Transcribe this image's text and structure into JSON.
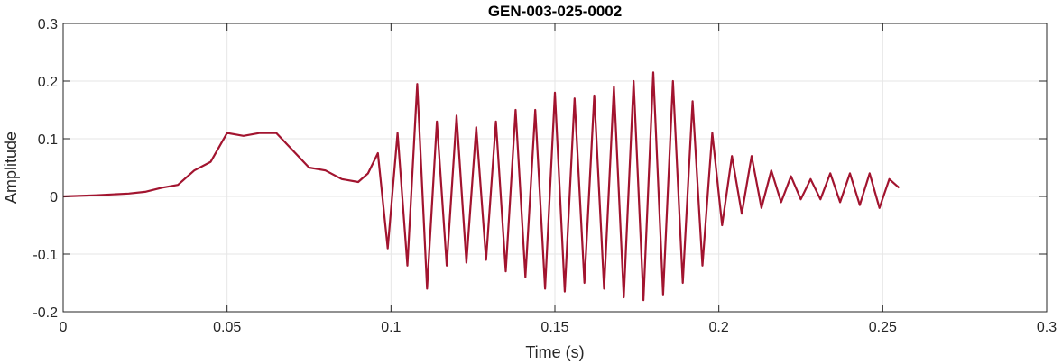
{
  "chart_data": {
    "type": "line",
    "title": "GEN-003-025-0002",
    "xlabel": "Time (s)",
    "ylabel": "Amplitude",
    "xlim": [
      0,
      0.3
    ],
    "ylim": [
      -0.2,
      0.3
    ],
    "x_ticks": [
      0,
      0.05,
      0.1,
      0.15,
      0.2,
      0.25,
      0.3
    ],
    "x_tick_labels": [
      "0",
      "0.05",
      "0.1",
      "0.15",
      "0.2",
      "0.25",
      "0.3"
    ],
    "y_ticks": [
      -0.2,
      -0.1,
      0,
      0.1,
      0.2,
      0.3
    ],
    "y_tick_labels": [
      "-0.2",
      "-0.1",
      "0",
      "0.1",
      "0.2",
      "0.3"
    ],
    "grid": true,
    "line_color": "#A2142F",
    "series": [
      {
        "x": [
          0,
          0.01,
          0.02,
          0.025,
          0.03,
          0.035,
          0.04,
          0.045,
          0.05,
          0.055,
          0.06,
          0.065,
          0.07,
          0.075,
          0.08,
          0.085,
          0.09,
          0.093,
          0.096,
          0.099,
          0.102,
          0.105,
          0.108,
          0.111,
          0.114,
          0.117,
          0.12,
          0.123,
          0.126,
          0.129,
          0.132,
          0.135,
          0.138,
          0.141,
          0.144,
          0.147,
          0.15,
          0.153,
          0.156,
          0.159,
          0.162,
          0.165,
          0.168,
          0.171,
          0.174,
          0.177,
          0.18,
          0.183,
          0.186,
          0.189,
          0.192,
          0.195,
          0.198,
          0.201,
          0.204,
          0.207,
          0.21,
          0.213,
          0.216,
          0.219,
          0.222,
          0.225,
          0.228,
          0.231,
          0.234,
          0.237,
          0.24,
          0.243,
          0.246,
          0.249,
          0.252,
          0.255
        ],
        "y": [
          0,
          0.002,
          0.005,
          0.008,
          0.015,
          0.02,
          0.045,
          0.06,
          0.11,
          0.105,
          0.11,
          0.11,
          0.08,
          0.05,
          0.045,
          0.03,
          0.025,
          0.04,
          0.075,
          -0.09,
          0.11,
          -0.12,
          0.195,
          -0.16,
          0.13,
          -0.12,
          0.14,
          -0.115,
          0.12,
          -0.11,
          0.13,
          -0.13,
          0.15,
          -0.14,
          0.15,
          -0.16,
          0.18,
          -0.165,
          0.17,
          -0.15,
          0.175,
          -0.16,
          0.19,
          -0.175,
          0.2,
          -0.18,
          0.215,
          -0.17,
          0.2,
          -0.15,
          0.165,
          -0.12,
          0.11,
          -0.05,
          0.07,
          -0.03,
          0.07,
          -0.02,
          0.045,
          -0.01,
          0.035,
          -0.005,
          0.03,
          -0.005,
          0.04,
          -0.01,
          0.04,
          -0.015,
          0.04,
          -0.02,
          0.03,
          0.015
        ]
      }
    ]
  }
}
